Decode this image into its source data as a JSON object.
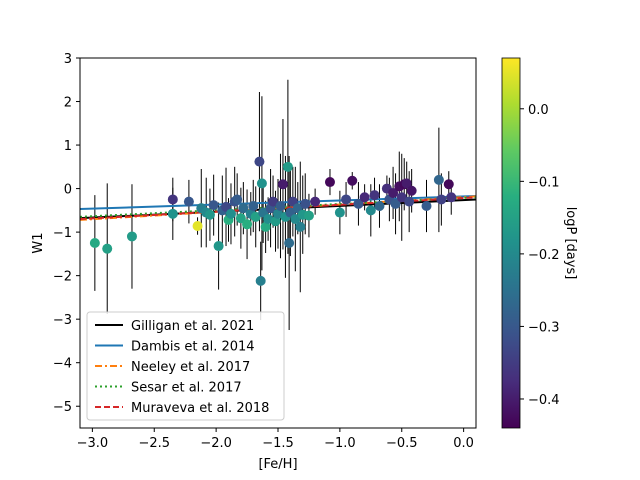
{
  "chart_data": {
    "type": "scatter",
    "xlabel": "[Fe/H]",
    "ylabel": "W1",
    "xlim": [
      -3.1,
      0.1
    ],
    "ylim": [
      -5.5,
      3.0
    ],
    "xticks": [
      -3.0,
      -2.5,
      -2.0,
      -1.5,
      -1.0,
      -0.5,
      0.0
    ],
    "xtick_labels": [
      "−3.0",
      "−2.5",
      "−2.0",
      "−1.5",
      "−1.0",
      "−0.5",
      "0.0"
    ],
    "yticks": [
      3,
      2,
      1,
      0,
      -1,
      -2,
      -3,
      -4,
      -5
    ],
    "ytick_labels": [
      "3",
      "2",
      "1",
      "0",
      "−1",
      "−2",
      "−3",
      "−4",
      "−5"
    ],
    "colorbar": {
      "label": "logP [days]",
      "range": [
        -0.44,
        0.07
      ],
      "ticks": [
        0.0,
        -0.1,
        -0.2,
        -0.3,
        -0.4
      ],
      "tick_labels": [
        "0.0",
        "−0.1",
        "−0.2",
        "−0.3",
        "−0.4"
      ],
      "colormap": "viridis"
    },
    "legend": {
      "position": "lower-left",
      "entries": [
        {
          "label": "Gilligan et al. 2021",
          "color": "#000000",
          "style": "solid"
        },
        {
          "label": "Dambis et al. 2014",
          "color": "#1f77b4",
          "style": "solid"
        },
        {
          "label": "Neeley et al. 2017",
          "color": "#ff7f0e",
          "style": "dashdot"
        },
        {
          "label": "Sesar et al. 2017",
          "color": "#2ca02c",
          "style": "dotted"
        },
        {
          "label": "Muraveva et al. 2018",
          "color": "#d62728",
          "style": "dashed"
        }
      ]
    },
    "lines": [
      {
        "name": "Gilligan et al. 2021",
        "color": "#000000",
        "dash": "",
        "width": 2,
        "x": [
          -3.1,
          0.1
        ],
        "y": [
          -0.68,
          -0.25
        ]
      },
      {
        "name": "Dambis et al. 2014",
        "color": "#1f77b4",
        "dash": "",
        "width": 2,
        "x": [
          -3.1,
          0.1
        ],
        "y": [
          -0.47,
          -0.17
        ]
      },
      {
        "name": "Neeley et al. 2017",
        "color": "#ff7f0e",
        "dash": "7,3,2,3",
        "width": 2,
        "x": [
          -3.1,
          0.1
        ],
        "y": [
          -0.72,
          -0.18
        ]
      },
      {
        "name": "Sesar et al. 2017",
        "color": "#2ca02c",
        "dash": "2,3",
        "width": 2,
        "x": [
          -3.1,
          0.1
        ],
        "y": [
          -0.65,
          -0.2
        ]
      },
      {
        "name": "Muraveva et al. 2018",
        "color": "#d62728",
        "dash": "6,3",
        "width": 2,
        "x": [
          -3.1,
          0.1
        ],
        "y": [
          -0.7,
          -0.2
        ]
      }
    ],
    "points": [
      {
        "x": -2.98,
        "y": -1.25,
        "err": 1.1,
        "logP": -0.13
      },
      {
        "x": -2.88,
        "y": -1.38,
        "err": 1.5,
        "logP": -0.15
      },
      {
        "x": -2.68,
        "y": -1.1,
        "err": 1.2,
        "logP": -0.16
      },
      {
        "x": -2.35,
        "y": -0.25,
        "err": 0.5,
        "logP": -0.36
      },
      {
        "x": -2.35,
        "y": -0.58,
        "err": 0.6,
        "logP": -0.18
      },
      {
        "x": -2.22,
        "y": -0.3,
        "err": 0.5,
        "logP": -0.3
      },
      {
        "x": -2.15,
        "y": -0.86,
        "err": 0.2,
        "logP": 0.05
      },
      {
        "x": -2.12,
        "y": -0.45,
        "err": 0.9,
        "logP": -0.22
      },
      {
        "x": -2.08,
        "y": -0.55,
        "err": 0.8,
        "logP": -0.2
      },
      {
        "x": -2.05,
        "y": -0.6,
        "err": 0.6,
        "logP": -0.17
      },
      {
        "x": -2.02,
        "y": -0.38,
        "err": 0.7,
        "logP": -0.3
      },
      {
        "x": -1.98,
        "y": -1.32,
        "err": 1.0,
        "logP": -0.17
      },
      {
        "x": -1.95,
        "y": -0.5,
        "err": 0.8,
        "logP": -0.28
      },
      {
        "x": -1.92,
        "y": -0.42,
        "err": 0.9,
        "logP": -0.33
      },
      {
        "x": -1.9,
        "y": -0.72,
        "err": 0.5,
        "logP": -0.12
      },
      {
        "x": -1.88,
        "y": -0.58,
        "err": 0.7,
        "logP": -0.19
      },
      {
        "x": -1.85,
        "y": -0.3,
        "err": 0.8,
        "logP": -0.31
      },
      {
        "x": -1.83,
        "y": -0.25,
        "err": 0.6,
        "logP": -0.29
      },
      {
        "x": -1.8,
        "y": -0.68,
        "err": 0.7,
        "logP": -0.14
      },
      {
        "x": -1.78,
        "y": -0.45,
        "err": 0.6,
        "logP": -0.26
      },
      {
        "x": -1.75,
        "y": -0.82,
        "err": 0.8,
        "logP": -0.12
      },
      {
        "x": -1.72,
        "y": -0.58,
        "err": 0.5,
        "logP": -0.22
      },
      {
        "x": -1.7,
        "y": -0.4,
        "err": 0.6,
        "logP": -0.28
      },
      {
        "x": -1.68,
        "y": -0.65,
        "err": 0.7,
        "logP": -0.15
      },
      {
        "x": -1.65,
        "y": 0.62,
        "err": 1.6,
        "logP": -0.33
      },
      {
        "x": -1.64,
        "y": -2.12,
        "err": 0.9,
        "logP": -0.22
      },
      {
        "x": -1.63,
        "y": 0.12,
        "err": 2.0,
        "logP": -0.18
      },
      {
        "x": -1.62,
        "y": -0.55,
        "err": 0.7,
        "logP": -0.24
      },
      {
        "x": -1.6,
        "y": -0.88,
        "err": 0.6,
        "logP": -0.13
      },
      {
        "x": -1.58,
        "y": -0.7,
        "err": 0.5,
        "logP": -0.19
      },
      {
        "x": -1.56,
        "y": -0.45,
        "err": 0.9,
        "logP": -0.3
      },
      {
        "x": -1.54,
        "y": -0.3,
        "err": 0.6,
        "logP": -0.35
      },
      {
        "x": -1.52,
        "y": -0.75,
        "err": 0.7,
        "logP": -0.16
      },
      {
        "x": -1.5,
        "y": -0.58,
        "err": 0.8,
        "logP": -0.21
      },
      {
        "x": -1.48,
        "y": -0.4,
        "err": 1.2,
        "logP": -0.29
      },
      {
        "x": -1.46,
        "y": 0.1,
        "err": 1.5,
        "logP": -0.4
      },
      {
        "x": -1.44,
        "y": -0.65,
        "err": 1.4,
        "logP": -0.18
      },
      {
        "x": -1.42,
        "y": 0.5,
        "err": 2.0,
        "logP": -0.16
      },
      {
        "x": -1.41,
        "y": -1.25,
        "err": 2.0,
        "logP": -0.26
      },
      {
        "x": -1.4,
        "y": -0.55,
        "err": 1.0,
        "logP": -0.28
      },
      {
        "x": -1.38,
        "y": -0.3,
        "err": 0.8,
        "logP": -0.34
      },
      {
        "x": -1.36,
        "y": -0.7,
        "err": 1.2,
        "logP": -0.2
      },
      {
        "x": -1.34,
        "y": -0.45,
        "err": 0.6,
        "logP": -0.27
      },
      {
        "x": -1.32,
        "y": -0.88,
        "err": 1.5,
        "logP": -0.22
      },
      {
        "x": -1.3,
        "y": -0.6,
        "err": 0.9,
        "logP": -0.17
      },
      {
        "x": -1.28,
        "y": -0.35,
        "err": 0.7,
        "logP": -0.31
      },
      {
        "x": -1.25,
        "y": -0.62,
        "err": 0.5,
        "logP": -0.15
      },
      {
        "x": -1.2,
        "y": -0.3,
        "err": 0.3,
        "logP": -0.38
      },
      {
        "x": -1.08,
        "y": 0.15,
        "err": 0.3,
        "logP": -0.43
      },
      {
        "x": -1.0,
        "y": -0.55,
        "err": 0.5,
        "logP": -0.18
      },
      {
        "x": -0.95,
        "y": -0.25,
        "err": 0.4,
        "logP": -0.33
      },
      {
        "x": -0.9,
        "y": 0.18,
        "err": 0.2,
        "logP": -0.42
      },
      {
        "x": -0.85,
        "y": -0.35,
        "err": 0.5,
        "logP": -0.3
      },
      {
        "x": -0.8,
        "y": -0.2,
        "err": 0.3,
        "logP": -0.38
      },
      {
        "x": -0.75,
        "y": -0.5,
        "err": 0.6,
        "logP": -0.2
      },
      {
        "x": -0.72,
        "y": -0.15,
        "err": 0.4,
        "logP": -0.36
      },
      {
        "x": -0.68,
        "y": -0.4,
        "err": 0.5,
        "logP": -0.27
      },
      {
        "x": -0.62,
        "y": 0.0,
        "err": 0.3,
        "logP": -0.37
      },
      {
        "x": -0.6,
        "y": -0.25,
        "err": 0.5,
        "logP": -0.31
      },
      {
        "x": -0.57,
        "y": -0.1,
        "err": 0.6,
        "logP": -0.4
      },
      {
        "x": -0.55,
        "y": -0.35,
        "err": 0.7,
        "logP": -0.29
      },
      {
        "x": -0.52,
        "y": 0.05,
        "err": 0.8,
        "logP": -0.42
      },
      {
        "x": -0.5,
        "y": -0.2,
        "err": 1.0,
        "logP": -0.36
      },
      {
        "x": -0.48,
        "y": 0.1,
        "err": 0.6,
        "logP": -0.43
      },
      {
        "x": -0.46,
        "y": 0.12,
        "err": 0.5,
        "logP": -0.4
      },
      {
        "x": -0.44,
        "y": -0.3,
        "err": 0.7,
        "logP": -0.33
      },
      {
        "x": -0.42,
        "y": -0.05,
        "err": 0.5,
        "logP": -0.41
      },
      {
        "x": -0.3,
        "y": -0.4,
        "err": 0.6,
        "logP": -0.29
      },
      {
        "x": -0.2,
        "y": 0.2,
        "err": 1.2,
        "logP": -0.27
      },
      {
        "x": -0.18,
        "y": -0.25,
        "err": 0.6,
        "logP": -0.34
      },
      {
        "x": -0.12,
        "y": 0.1,
        "err": 0.3,
        "logP": -0.43
      },
      {
        "x": -0.1,
        "y": -0.2,
        "err": 0.4,
        "logP": -0.36
      }
    ]
  }
}
